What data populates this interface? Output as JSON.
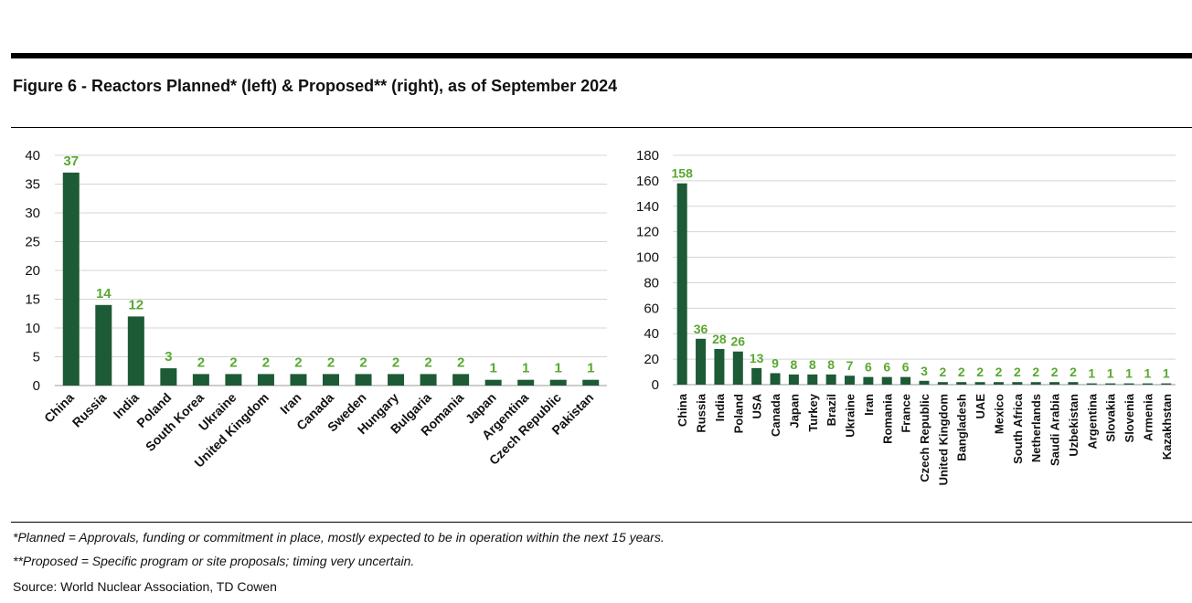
{
  "title": "Figure 6 - Reactors Planned* (left) & Proposed** (right), as of September 2024",
  "notes": {
    "planned": "*Planned = Approvals, funding or commitment in place, mostly expected to be in operation within the next 15 years.",
    "proposed": "**Proposed = Specific program or site proposals; timing very uncertain.",
    "source": "Source: World Nuclear Association, TD Cowen"
  },
  "colors": {
    "bar": "#1d5a36",
    "label": "#5aa832",
    "grid": "#d4d4d4",
    "axis": "#999999"
  },
  "chart_data": [
    {
      "type": "bar",
      "title": "Reactors Planned",
      "categories": [
        "China",
        "Russia",
        "India",
        "Poland",
        "South Korea",
        "Ukraine",
        "United Kingdom",
        "Iran",
        "Canada",
        "Sweden",
        "Hungary",
        "Bulgaria",
        "Romania",
        "Japan",
        "Argentina",
        "Czech Republic",
        "Pakistan"
      ],
      "values": [
        37,
        14,
        12,
        3,
        2,
        2,
        2,
        2,
        2,
        2,
        2,
        2,
        2,
        1,
        1,
        1,
        1
      ],
      "yticks": [
        0,
        5,
        10,
        15,
        20,
        25,
        30,
        35,
        40
      ],
      "ylim": [
        0,
        40
      ],
      "xlabel": "",
      "ylabel": ""
    },
    {
      "type": "bar",
      "title": "Reactors Proposed",
      "categories": [
        "China",
        "Russia",
        "India",
        "Poland",
        "USA",
        "Canada",
        "Japan",
        "Turkey",
        "Brazil",
        "Ukraine",
        "Iran",
        "Romania",
        "France",
        "Czech Republic",
        "United Kingdom",
        "Bangladesh",
        "UAE",
        "Mexico",
        "South Africa",
        "Netherlands",
        "Saudi Arabia",
        "Uzbekistan",
        "Argentina",
        "Slovakia",
        "Slovenia",
        "Armenia",
        "Kazakhstan"
      ],
      "values": [
        158,
        36,
        28,
        26,
        13,
        9,
        8,
        8,
        8,
        7,
        6,
        6,
        6,
        3,
        2,
        2,
        2,
        2,
        2,
        2,
        2,
        2,
        1,
        1,
        1,
        1,
        1
      ],
      "yticks": [
        0,
        20,
        40,
        60,
        80,
        100,
        120,
        140,
        160,
        180
      ],
      "ylim": [
        0,
        180
      ],
      "xlabel": "",
      "ylabel": ""
    }
  ]
}
